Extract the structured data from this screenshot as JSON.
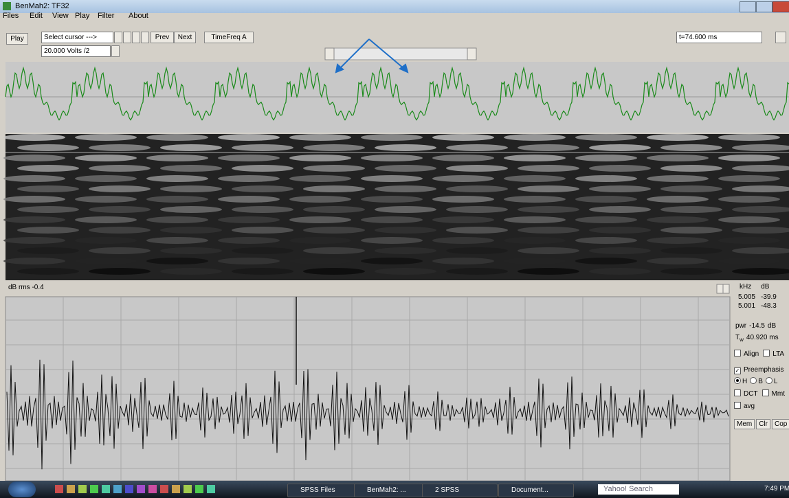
{
  "window": {
    "title": "BenMah2: TF32"
  },
  "menu": [
    "Files",
    "Edit",
    "View",
    "Play",
    "Filter",
    "About"
  ],
  "toolbar": {
    "play": "Play",
    "select": "Select cursor --->",
    "prev": "Prev",
    "next": "Next",
    "timefreq": "TimeFreq A",
    "volts": "20.000 Volts /2",
    "time": "t=74.600 ms"
  },
  "waveform_label": "dB rms -0.4",
  "panel": {
    "headers": [
      "kHz",
      "dB"
    ],
    "rows": [
      [
        "5.005",
        "-39.9"
      ],
      [
        "5.001",
        "-48.3"
      ]
    ],
    "pwr": {
      "label": "pwr",
      "value": "-14.5",
      "unit": "dB"
    },
    "tw": {
      "label": "T",
      "sub": "w",
      "value": "40.920 ms"
    },
    "checks1": [
      {
        "label": "Align",
        "checked": false
      },
      {
        "label": "LTA",
        "checked": false
      }
    ],
    "preemphasis": {
      "label": "Preemphasis",
      "checked": true
    },
    "radios": [
      {
        "label": "H",
        "checked": true
      },
      {
        "label": "B",
        "checked": false
      },
      {
        "label": "L",
        "checked": false
      }
    ],
    "checks2": [
      {
        "label": "DCT",
        "checked": false
      },
      {
        "label": "Mmt",
        "checked": false
      },
      {
        "label": "avg",
        "checked": false
      }
    ],
    "buttons": [
      "Mem",
      "Clr",
      "Cop"
    ]
  },
  "taskbar": {
    "items": [
      "SPSS Files",
      "BenMah2: ...",
      "2 SPSS",
      "Document..."
    ],
    "search": "Yahoo! Search",
    "clock": "7:49 PM"
  }
}
